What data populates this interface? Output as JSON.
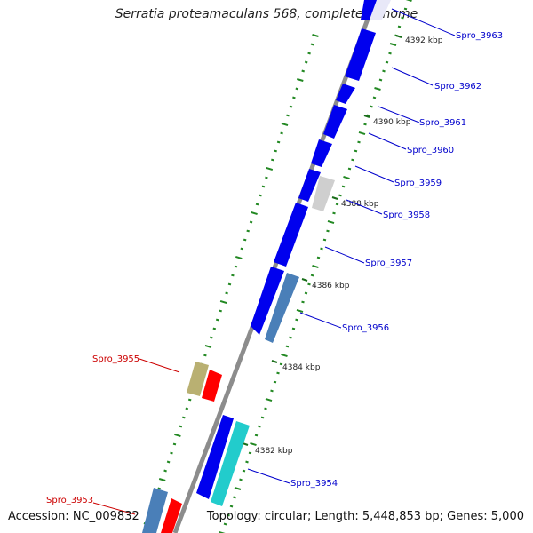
{
  "title": "Serratia proteamaculans 568, complete genome",
  "accession": "Accession: NC_009832",
  "summary": "Topology: circular; Length: 5,448,853 bp; Genes: 5,000",
  "colors": {
    "forward_gene": "#0000ee",
    "reverse_gene": "#ff0000",
    "label_forward": "#0000cc",
    "label_reverse": "#cc0000",
    "backbone": "#888888",
    "tick": "#228822"
  },
  "kbp_labels": [
    "4392 kbp",
    "4390 kbp",
    "4388 kbp",
    "4386 kbp",
    "4384 kbp",
    "4382 kbp"
  ],
  "genes": [
    {
      "name": "Spro_3963",
      "strand": "forward",
      "color": "#0000ee"
    },
    {
      "name": "Spro_3962",
      "strand": "forward",
      "color": "#0000ee"
    },
    {
      "name": "Spro_3961",
      "strand": "forward",
      "color": "#0000ee"
    },
    {
      "name": "Spro_3960",
      "strand": "forward",
      "color": "#0000ee"
    },
    {
      "name": "Spro_3959",
      "strand": "forward",
      "color": "#0000ee"
    },
    {
      "name": "Spro_3958",
      "strand": "forward",
      "color": "#c8c8c8"
    },
    {
      "name": "Spro_3957",
      "strand": "forward",
      "color": "#0000ee"
    },
    {
      "name": "Spro_3956",
      "strand": "forward",
      "color": "#4a7fb8"
    },
    {
      "name": "Spro_3955",
      "strand": "reverse",
      "color": "#b9b072"
    },
    {
      "name": "Spro_3954",
      "strand": "forward",
      "color": "#22cccc"
    },
    {
      "name": "Spro_3953",
      "strand": "reverse",
      "color": "#4a7fb8"
    }
  ]
}
